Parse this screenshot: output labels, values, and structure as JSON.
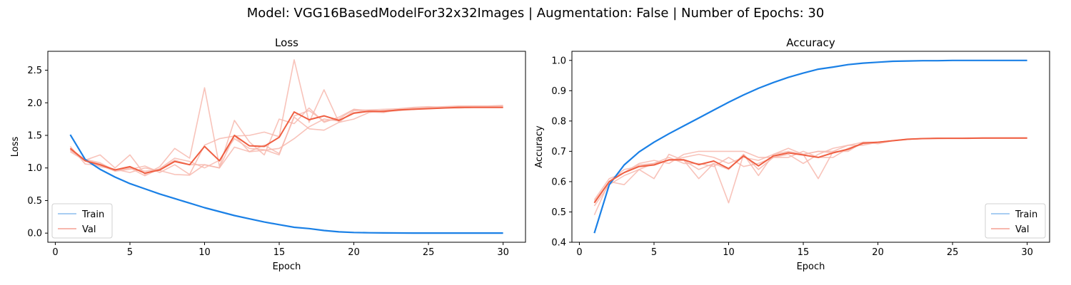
{
  "suptitle": "Model: VGG16BasedModelFor32x32Images | Augmentation: False | Number of Epochs: 30",
  "colors": {
    "train_mean": "#1a80e6",
    "train_fold": "#a8cdf2",
    "val_mean": "#ef5f42",
    "val_fold": "#f7b8ae"
  },
  "chart_data": [
    {
      "type": "line",
      "title": "Loss",
      "xlabel": "Epoch",
      "ylabel": "Loss",
      "xlim": [
        -0.5,
        31.5
      ],
      "ylim": [
        -0.14,
        2.79
      ],
      "xticks": [
        0,
        5,
        10,
        15,
        20,
        25,
        30
      ],
      "yticks": [
        0.0,
        0.5,
        1.0,
        1.5,
        2.0,
        2.5
      ],
      "ytick_labels": [
        "0.0",
        "0.5",
        "1.0",
        "1.5",
        "2.0",
        "2.5"
      ],
      "grid": false,
      "legend": {
        "placement": "lower-left",
        "entries": [
          "Train",
          "Val"
        ]
      },
      "x": [
        1,
        2,
        3,
        4,
        5,
        6,
        7,
        8,
        9,
        10,
        11,
        12,
        13,
        14,
        15,
        16,
        17,
        18,
        19,
        20,
        21,
        22,
        23,
        24,
        25,
        26,
        27,
        28,
        29,
        30
      ],
      "series": [
        {
          "name": "Train",
          "role": "mean",
          "values": [
            1.51,
            1.13,
            0.98,
            0.86,
            0.76,
            0.68,
            0.6,
            0.53,
            0.46,
            0.39,
            0.33,
            0.27,
            0.22,
            0.17,
            0.13,
            0.09,
            0.07,
            0.04,
            0.02,
            0.01,
            0.005,
            0.003,
            0.002,
            0.001,
            0.001,
            0.001,
            0.001,
            0.001,
            0.001,
            0.001
          ]
        },
        {
          "name": "Val",
          "role": "mean",
          "values": [
            1.3,
            1.11,
            1.05,
            0.97,
            1.02,
            0.92,
            0.97,
            1.1,
            1.05,
            1.33,
            1.11,
            1.5,
            1.34,
            1.33,
            1.47,
            1.86,
            1.74,
            1.8,
            1.73,
            1.84,
            1.87,
            1.87,
            1.89,
            1.9,
            1.91,
            1.92,
            1.93,
            1.93,
            1.93,
            1.93
          ]
        },
        {
          "role": "fold",
          "values": [
            1.27,
            1.12,
            1.2,
            1.0,
            1.2,
            0.9,
            1.02,
            1.3,
            1.15,
            2.23,
            1.02,
            1.73,
            1.4,
            1.2,
            1.75,
            1.68,
            1.92,
            1.7,
            1.78,
            1.9,
            1.88,
            1.86,
            1.88,
            1.9,
            1.92,
            1.93,
            1.94,
            1.95,
            1.95,
            1.95
          ]
        },
        {
          "role": "fold",
          "values": [
            1.33,
            1.06,
            1.04,
            0.95,
            0.98,
            1.03,
            0.93,
            1.05,
            0.9,
            1.35,
            1.45,
            1.49,
            1.5,
            1.55,
            1.48,
            2.66,
            1.7,
            2.2,
            1.7,
            1.88,
            1.89,
            1.9,
            1.91,
            1.93,
            1.94,
            1.93,
            1.92,
            1.93,
            1.94,
            1.93
          ]
        },
        {
          "role": "fold",
          "values": [
            1.25,
            1.11,
            1.02,
            0.98,
            0.93,
            1.0,
            0.96,
            0.9,
            0.89,
            1.05,
            1.0,
            1.32,
            1.25,
            1.35,
            1.22,
            1.78,
            1.6,
            1.58,
            1.7,
            1.75,
            1.85,
            1.88,
            1.89,
            1.92,
            1.93,
            1.94,
            1.95,
            1.95,
            1.95,
            1.96
          ]
        },
        {
          "role": "fold",
          "values": [
            1.28,
            1.13,
            1.08,
            0.96,
            1.0,
            0.88,
            0.99,
            1.15,
            1.1,
            1.0,
            1.12,
            1.45,
            1.3,
            1.28,
            1.2,
            1.8,
            1.88,
            1.72,
            1.75,
            1.9,
            1.86,
            1.85,
            1.9,
            1.9,
            1.92,
            1.92,
            1.93,
            1.94,
            1.93,
            1.93
          ]
        },
        {
          "role": "fold",
          "values": [
            1.3,
            1.12,
            1.06,
            0.97,
            1.0,
            0.95,
            0.98,
            1.12,
            1.05,
            1.05,
            1.0,
            1.5,
            1.25,
            1.27,
            1.3,
            1.45,
            1.63,
            1.75,
            1.72,
            1.85,
            1.88,
            1.87,
            1.88,
            1.91,
            1.91,
            1.92,
            1.92,
            1.93,
            1.93,
            1.93
          ]
        }
      ]
    },
    {
      "type": "line",
      "title": "Accuracy",
      "xlabel": "Epoch",
      "ylabel": "Accuracy",
      "xlim": [
        -0.5,
        31.5
      ],
      "ylim": [
        0.4,
        1.03
      ],
      "xticks": [
        0,
        5,
        10,
        15,
        20,
        25,
        30
      ],
      "yticks": [
        0.4,
        0.5,
        0.6,
        0.7,
        0.8,
        0.9,
        1.0
      ],
      "ytick_labels": [
        "0.4",
        "0.5",
        "0.6",
        "0.7",
        "0.8",
        "0.9",
        "1.0"
      ],
      "grid": false,
      "legend": {
        "placement": "lower-right",
        "entries": [
          "Train",
          "Val"
        ]
      },
      "x": [
        1,
        2,
        3,
        4,
        5,
        6,
        7,
        8,
        9,
        10,
        11,
        12,
        13,
        14,
        15,
        16,
        17,
        18,
        19,
        20,
        21,
        22,
        23,
        24,
        25,
        26,
        27,
        28,
        29,
        30
      ],
      "series": [
        {
          "name": "Train",
          "role": "mean",
          "values": [
            0.43,
            0.59,
            0.655,
            0.698,
            0.73,
            0.758,
            0.784,
            0.81,
            0.836,
            0.862,
            0.886,
            0.908,
            0.927,
            0.944,
            0.958,
            0.971,
            0.978,
            0.986,
            0.991,
            0.994,
            0.997,
            0.998,
            0.999,
            0.999,
            1.0,
            1.0,
            1.0,
            1.0,
            1.0,
            1.0
          ]
        },
        {
          "name": "Val",
          "role": "mean",
          "values": [
            0.53,
            0.6,
            0.63,
            0.65,
            0.655,
            0.672,
            0.672,
            0.656,
            0.668,
            0.643,
            0.685,
            0.652,
            0.685,
            0.695,
            0.688,
            0.68,
            0.695,
            0.707,
            0.727,
            0.73,
            0.735,
            0.74,
            0.742,
            0.743,
            0.743,
            0.743,
            0.744,
            0.744,
            0.744,
            0.744
          ]
        },
        {
          "role": "fold",
          "values": [
            0.49,
            0.6,
            0.59,
            0.64,
            0.61,
            0.69,
            0.67,
            0.61,
            0.66,
            0.53,
            0.69,
            0.62,
            0.69,
            0.71,
            0.69,
            0.61,
            0.7,
            0.72,
            0.73,
            0.73,
            0.735,
            0.74,
            0.742,
            0.742,
            0.743,
            0.743,
            0.743,
            0.743,
            0.743,
            0.743
          ]
        },
        {
          "role": "fold",
          "values": [
            0.54,
            0.61,
            0.63,
            0.66,
            0.67,
            0.66,
            0.69,
            0.7,
            0.7,
            0.7,
            0.7,
            0.68,
            0.68,
            0.69,
            0.66,
            0.69,
            0.71,
            0.72,
            0.72,
            0.73,
            0.735,
            0.74,
            0.742,
            0.743,
            0.743,
            0.744,
            0.744,
            0.744,
            0.744,
            0.744
          ]
        },
        {
          "role": "fold",
          "values": [
            0.53,
            0.6,
            0.64,
            0.65,
            0.66,
            0.68,
            0.66,
            0.66,
            0.65,
            0.68,
            0.65,
            0.66,
            0.68,
            0.68,
            0.7,
            0.68,
            0.68,
            0.71,
            0.725,
            0.73,
            0.735,
            0.74,
            0.742,
            0.743,
            0.743,
            0.744,
            0.744,
            0.744,
            0.744,
            0.744
          ]
        },
        {
          "role": "fold",
          "values": [
            0.52,
            0.59,
            0.62,
            0.64,
            0.66,
            0.67,
            0.68,
            0.69,
            0.68,
            0.66,
            0.68,
            0.67,
            0.69,
            0.7,
            0.69,
            0.7,
            0.7,
            0.7,
            0.73,
            0.725,
            0.735,
            0.74,
            0.742,
            0.743,
            0.743,
            0.743,
            0.743,
            0.744,
            0.744,
            0.744
          ]
        },
        {
          "role": "fold",
          "values": [
            0.535,
            0.6,
            0.63,
            0.655,
            0.66,
            0.67,
            0.67,
            0.64,
            0.66,
            0.64,
            0.69,
            0.64,
            0.68,
            0.695,
            0.69,
            0.7,
            0.695,
            0.705,
            0.725,
            0.73,
            0.735,
            0.74,
            0.742,
            0.743,
            0.743,
            0.743,
            0.744,
            0.744,
            0.744,
            0.744
          ]
        }
      ]
    }
  ]
}
